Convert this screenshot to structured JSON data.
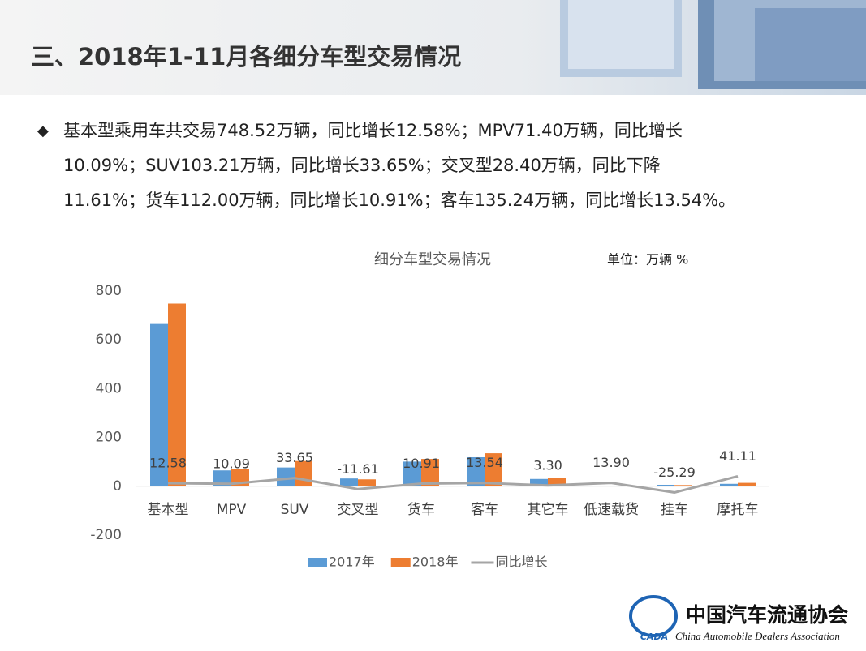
{
  "header": {
    "title": "三、2018年1-11月各细分车型交易情况"
  },
  "bullet": {
    "lines": [
      "基本型乘用车共交易748.52万辆，同比增长12.58%；MPV71.40万辆，同比增长",
      "10.09%；SUV103.21万辆，同比增长33.65%；交叉型28.40万辆，同比下降",
      "11.61%；货车112.00万辆，同比增长10.91%；客车135.24万辆，同比增长13.54%。"
    ]
  },
  "logo": {
    "name": "中国汽车流通协会",
    "english": "China Automobile Dealers Association",
    "abbr": "CADA"
  },
  "chart_data": {
    "type": "bar",
    "title": "细分车型交易情况",
    "unit_note": "单位：万辆 %",
    "categories": [
      "基本型",
      "MPV",
      "SUV",
      "交叉型",
      "货车",
      "客车",
      "其它车",
      "低速载货",
      "挂车",
      "摩托车"
    ],
    "series": [
      {
        "name": "2017年",
        "color": "#5b9bd5",
        "type": "bar",
        "values": [
          665,
          65,
          77,
          32,
          101,
          119,
          30,
          2,
          6,
          10
        ]
      },
      {
        "name": "2018年",
        "color": "#ed7d31",
        "type": "bar",
        "values": [
          748.52,
          71.4,
          103.21,
          28.4,
          112,
          135.24,
          33,
          2,
          5,
          14
        ]
      },
      {
        "name": "同比增长",
        "color": "#a5a5a5",
        "type": "line",
        "values": [
          12.58,
          10.09,
          33.65,
          -11.61,
          10.91,
          13.54,
          3.3,
          13.9,
          -25.29,
          41.11
        ],
        "value_labels": [
          "12.58",
          "10.09",
          "33.65",
          "-11.61",
          "10.91",
          "13.54",
          "3.30",
          "13.90",
          "-25.29",
          "41.11"
        ]
      }
    ],
    "ylim": [
      -200,
      800
    ],
    "yticks": [
      -200,
      0,
      200,
      400,
      600,
      800
    ],
    "legend": "bottom"
  }
}
